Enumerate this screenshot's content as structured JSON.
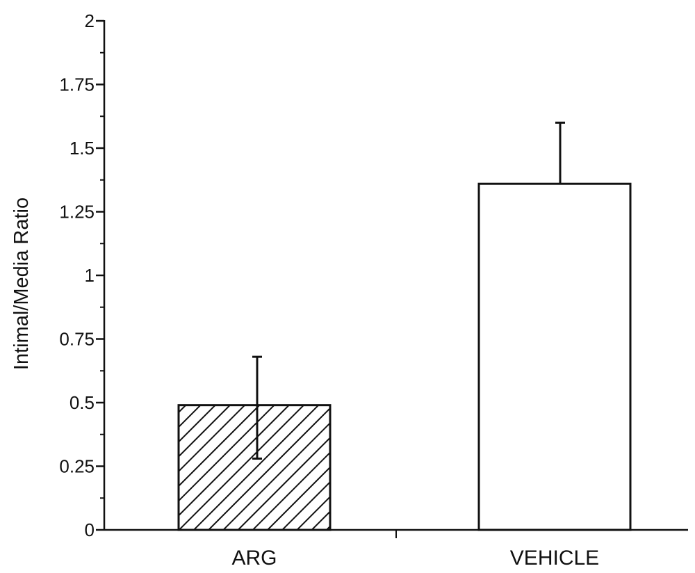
{
  "chart_data": {
    "type": "bar",
    "categories": [
      "ARG",
      "VEHICLE"
    ],
    "values": [
      0.49,
      1.36
    ],
    "error_upper": [
      0.68,
      1.6
    ],
    "error_lower": [
      0.28,
      null
    ],
    "bar_fill": [
      "hatched",
      "white"
    ],
    "xlabel": "",
    "ylabel": "Intimal/Media Ratio",
    "ylim": [
      0,
      2
    ],
    "yticks": [
      "0",
      "0.25",
      "0.5",
      "0.75",
      "1",
      "1.25",
      "1.5",
      "1.75",
      "2"
    ],
    "ytick_values": [
      0,
      0.25,
      0.5,
      0.75,
      1,
      1.25,
      1.5,
      1.75,
      2
    ],
    "grid": false,
    "colors": {
      "ink": "#111111",
      "background": "#ffffff"
    }
  }
}
